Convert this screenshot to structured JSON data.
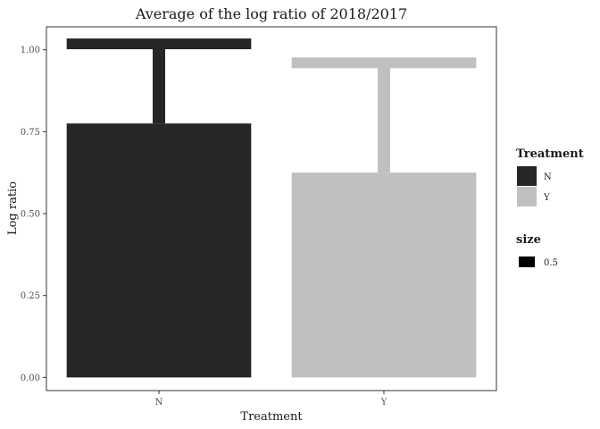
{
  "chart_data": {
    "type": "bar",
    "title": "Average of the log ratio of 2018/2017",
    "xlabel": "Treatment",
    "ylabel": "Log ratio",
    "categories": [
      "N",
      "Y"
    ],
    "values": [
      0.775,
      0.625
    ],
    "error_upper": [
      1.018,
      0.96
    ],
    "bar_colors": [
      "#262626",
      "#c0c0c0"
    ],
    "ylim": [
      -0.04,
      1.07
    ],
    "yticks": [
      0.0,
      0.25,
      0.5,
      0.75,
      1.0
    ],
    "ytick_labels": [
      "0.00",
      "0.25",
      "0.50",
      "0.75",
      "1.00"
    ],
    "grid": false,
    "legend_position": "right",
    "legend": {
      "treatment": {
        "title": "Treatment",
        "items": [
          {
            "label": "N",
            "color": "#262626"
          },
          {
            "label": "Y",
            "color": "#c0c0c0"
          }
        ]
      },
      "size": {
        "title": "size",
        "items": [
          {
            "label": "0.5",
            "color": "#000000"
          }
        ]
      }
    }
  }
}
